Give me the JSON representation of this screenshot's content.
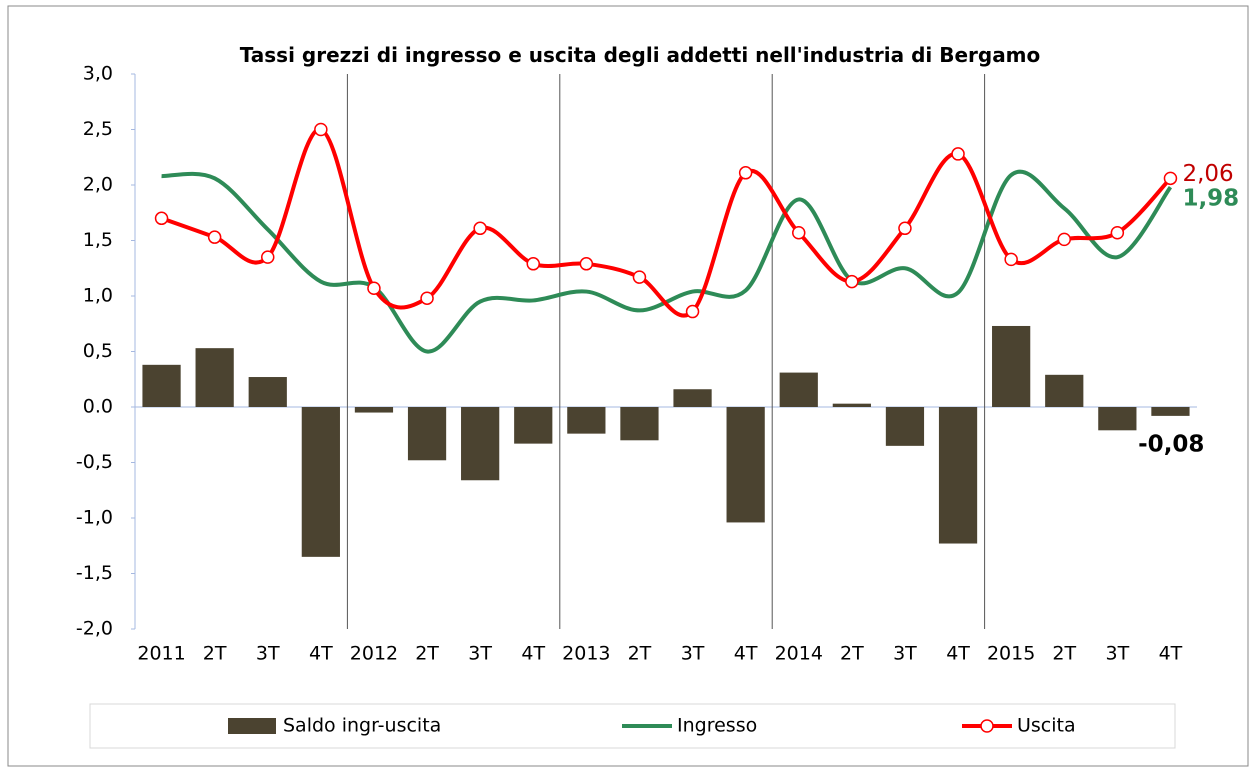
{
  "chart_data": {
    "type": "bar-line",
    "title": "Tassi grezzi di ingresso e uscita degli addetti nell'industria di Bergamo",
    "categories": [
      "2011",
      "2T",
      "3T",
      "4T",
      "2012",
      "2T",
      "3T",
      "4T",
      "2013",
      "2T",
      "3T",
      "4T",
      "2014",
      "2T",
      "3T",
      "4T",
      "2015",
      "2T",
      "3T",
      "4T"
    ],
    "series": [
      {
        "name": "Saldo ingr-uscita",
        "type": "bar",
        "color": "#4b4330",
        "values": [
          0.38,
          0.53,
          0.27,
          -1.35,
          -0.05,
          -0.48,
          -0.66,
          -0.33,
          -0.24,
          -0.3,
          0.16,
          -1.04,
          0.31,
          0.03,
          -0.35,
          -1.23,
          0.73,
          0.29,
          -0.21,
          -0.08
        ],
        "value_labels": [
          null,
          null,
          null,
          null,
          null,
          null,
          null,
          null,
          null,
          null,
          null,
          null,
          null,
          null,
          null,
          null,
          null,
          null,
          null,
          "-0,08"
        ],
        "label_color": "#000000"
      },
      {
        "name": "Ingresso",
        "type": "line",
        "color": "#2e8b57",
        "values": [
          2.08,
          2.06,
          1.6,
          1.13,
          1.08,
          0.5,
          0.95,
          0.96,
          1.04,
          0.87,
          1.04,
          1.05,
          1.87,
          1.14,
          1.25,
          1.03,
          2.09,
          1.79,
          1.35,
          1.98
        ],
        "value_labels": [
          null,
          null,
          null,
          null,
          null,
          null,
          null,
          null,
          null,
          null,
          null,
          null,
          null,
          null,
          null,
          null,
          null,
          null,
          null,
          "1,98"
        ],
        "label_color": "#2e8b57"
      },
      {
        "name": "Uscita",
        "type": "line",
        "color": "#ff0000",
        "markers": true,
        "values": [
          1.7,
          1.53,
          1.35,
          2.5,
          1.07,
          0.98,
          1.61,
          1.29,
          1.29,
          1.17,
          0.86,
          2.11,
          1.57,
          1.13,
          1.61,
          2.28,
          1.33,
          1.51,
          1.57,
          2.06
        ],
        "value_labels": [
          null,
          null,
          null,
          null,
          null,
          null,
          null,
          null,
          null,
          null,
          null,
          null,
          null,
          null,
          null,
          null,
          null,
          null,
          null,
          "2,06"
        ],
        "label_color": "#c00000"
      }
    ],
    "ylim": [
      -2,
      3
    ],
    "yticks": [
      {
        "value": -2,
        "label": "-2,0"
      },
      {
        "value": -1.5,
        "label": "-1,5"
      },
      {
        "value": -1,
        "label": "-1,0"
      },
      {
        "value": -0.5,
        "label": "-0,5"
      },
      {
        "value": 0,
        "label": "0.0"
      },
      {
        "value": 0.5,
        "label": "0,5"
      },
      {
        "value": 1,
        "label": "1,0"
      },
      {
        "value": 1.5,
        "label": "1,5"
      },
      {
        "value": 2,
        "label": "2,0"
      },
      {
        "value": 2.5,
        "label": "2,5"
      },
      {
        "value": 3,
        "label": "3,0"
      }
    ],
    "year_separators": true,
    "legend": "bottom"
  }
}
